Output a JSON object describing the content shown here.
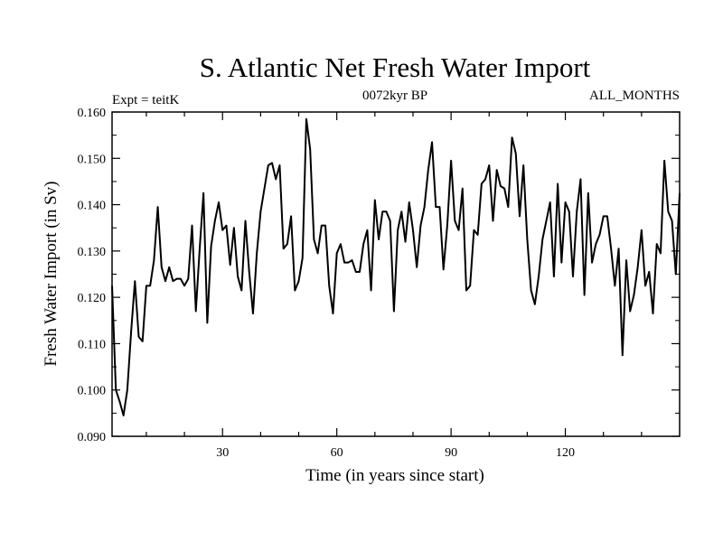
{
  "chart_data": {
    "type": "line",
    "title": "S. Atlantic Net Fresh Water Import",
    "subtitle_left": "Expt = teitK",
    "subtitle_center": "0072kyr BP",
    "subtitle_right": "ALL_MONTHS",
    "xlabel": "Time (in years since start)",
    "ylabel": "Fresh Water Import (in Sv)",
    "xlim": [
      1,
      150
    ],
    "ylim": [
      0.09,
      0.16
    ],
    "xticks": [
      30,
      60,
      90,
      120
    ],
    "xtick_labels": [
      "30",
      "60",
      "90",
      "120"
    ],
    "yticks": [
      0.09,
      0.1,
      0.11,
      0.12,
      0.13,
      0.14,
      0.15,
      0.16
    ],
    "ytick_labels": [
      "0.090",
      "0.100",
      "0.110",
      "0.120",
      "0.130",
      "0.140",
      "0.150",
      "0.160"
    ],
    "line_color": "#000000",
    "series": [
      {
        "name": "Net Fresh Water Import",
        "x": [
          1,
          2,
          3,
          4,
          5,
          6,
          7,
          8,
          9,
          10,
          11,
          12,
          13,
          14,
          15,
          16,
          17,
          18,
          19,
          20,
          21,
          22,
          23,
          24,
          25,
          26,
          27,
          28,
          29,
          30,
          31,
          32,
          33,
          34,
          35,
          36,
          37,
          38,
          39,
          40,
          41,
          42,
          43,
          44,
          45,
          46,
          47,
          48,
          49,
          50,
          51,
          52,
          53,
          54,
          55,
          56,
          57,
          58,
          59,
          60,
          61,
          62,
          63,
          64,
          65,
          66,
          67,
          68,
          69,
          70,
          71,
          72,
          73,
          74,
          75,
          76,
          77,
          78,
          79,
          80,
          81,
          82,
          83,
          84,
          85,
          86,
          87,
          88,
          89,
          90,
          91,
          92,
          93,
          94,
          95,
          96,
          97,
          98,
          99,
          100,
          101,
          102,
          103,
          104,
          105,
          106,
          107,
          108,
          109,
          110,
          111,
          112,
          113,
          114,
          115,
          116,
          117,
          118,
          119,
          120,
          121,
          122,
          123,
          124,
          125,
          126,
          127,
          128,
          129,
          130,
          131,
          132,
          133,
          134,
          135,
          136,
          137,
          138,
          139,
          140,
          141,
          142,
          143,
          144,
          145,
          146,
          147,
          148,
          149,
          150
        ],
        "values": [
          0.1225,
          0.1,
          0.0975,
          0.0945,
          0.1,
          0.1125,
          0.1235,
          0.1115,
          0.1105,
          0.1225,
          0.1225,
          0.128,
          0.1395,
          0.1265,
          0.1235,
          0.1265,
          0.1235,
          0.124,
          0.124,
          0.1225,
          0.124,
          0.1355,
          0.117,
          0.1305,
          0.1425,
          0.1145,
          0.131,
          0.1365,
          0.1405,
          0.1345,
          0.1355,
          0.127,
          0.135,
          0.1245,
          0.1215,
          0.1365,
          0.1255,
          0.1165,
          0.1295,
          0.1385,
          0.1435,
          0.1485,
          0.149,
          0.1455,
          0.1485,
          0.1305,
          0.1315,
          0.1375,
          0.1215,
          0.1235,
          0.1285,
          0.1585,
          0.152,
          0.1325,
          0.1295,
          0.1355,
          0.1355,
          0.1225,
          0.1165,
          0.1295,
          0.1315,
          0.1275,
          0.1275,
          0.128,
          0.1255,
          0.1255,
          0.1315,
          0.1345,
          0.1215,
          0.141,
          0.1325,
          0.1385,
          0.1385,
          0.1365,
          0.117,
          0.1345,
          0.1385,
          0.132,
          0.1405,
          0.1345,
          0.1265,
          0.1355,
          0.1395,
          0.1475,
          0.1535,
          0.1395,
          0.1395,
          0.126,
          0.1355,
          0.1495,
          0.1365,
          0.1345,
          0.1435,
          0.1215,
          0.1225,
          0.1345,
          0.1335,
          0.1445,
          0.1455,
          0.1485,
          0.1365,
          0.1475,
          0.144,
          0.1435,
          0.1395,
          0.1545,
          0.151,
          0.1375,
          0.1485,
          0.1325,
          0.1215,
          0.1185,
          0.1245,
          0.1325,
          0.1365,
          0.1405,
          0.1245,
          0.1445,
          0.1275,
          0.1405,
          0.1385,
          0.1245,
          0.1385,
          0.1455,
          0.1205,
          0.1425,
          0.1275,
          0.1315,
          0.1335,
          0.1375,
          0.1375,
          0.1305,
          0.1225,
          0.1305,
          0.1075,
          0.128,
          0.117,
          0.1205,
          0.1265,
          0.1345,
          0.1225,
          0.1255,
          0.1165,
          0.1315,
          0.1295,
          0.1495,
          0.1385,
          0.1365,
          0.125,
          0.1425
        ]
      }
    ]
  }
}
